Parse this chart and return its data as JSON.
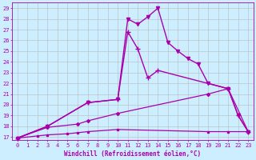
{
  "xlabel": "Windchill (Refroidissement éolien,°C)",
  "xlim": [
    -0.5,
    23.5
  ],
  "ylim": [
    16.7,
    29.5
  ],
  "yticks": [
    17,
    18,
    19,
    20,
    21,
    22,
    23,
    24,
    25,
    26,
    27,
    28,
    29
  ],
  "xticks": [
    0,
    1,
    2,
    3,
    4,
    5,
    6,
    7,
    8,
    9,
    10,
    11,
    12,
    13,
    14,
    15,
    16,
    17,
    18,
    19,
    20,
    21,
    22,
    23
  ],
  "background_color": "#cceeff",
  "line_color": "#aa00aa",
  "grid_color": "#bbbbbb",
  "line1_x": [
    0,
    3,
    7,
    10,
    11,
    12,
    13,
    14,
    15,
    16,
    17,
    18,
    19,
    21,
    22,
    23
  ],
  "line1_y": [
    16.9,
    18.0,
    20.2,
    20.5,
    28.0,
    27.5,
    28.2,
    29.0,
    25.8,
    25.0,
    24.3,
    23.8,
    22.0,
    21.5,
    19.0,
    17.5
  ],
  "line2_x": [
    0,
    3,
    7,
    10,
    11,
    12,
    13,
    14,
    21,
    22,
    23
  ],
  "line2_y": [
    16.9,
    18.0,
    20.2,
    20.5,
    26.8,
    25.2,
    22.5,
    23.2,
    21.5,
    19.0,
    17.5
  ],
  "line3_x": [
    0,
    3,
    6,
    7,
    10,
    19,
    21,
    23
  ],
  "line3_y": [
    16.9,
    17.9,
    18.2,
    18.5,
    19.2,
    21.0,
    21.5,
    17.5
  ],
  "line4_x": [
    0,
    2,
    3,
    5,
    6,
    7,
    10,
    19,
    21,
    23
  ],
  "line4_y": [
    16.9,
    17.1,
    17.2,
    17.3,
    17.4,
    17.5,
    17.7,
    17.5,
    17.5,
    17.5
  ]
}
